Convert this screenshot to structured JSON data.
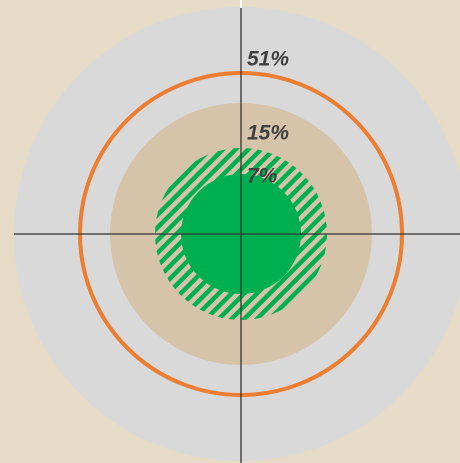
{
  "rings": [
    {
      "label": "51%"
    },
    {
      "label": "15%"
    },
    {
      "label": "7%"
    }
  ]
}
